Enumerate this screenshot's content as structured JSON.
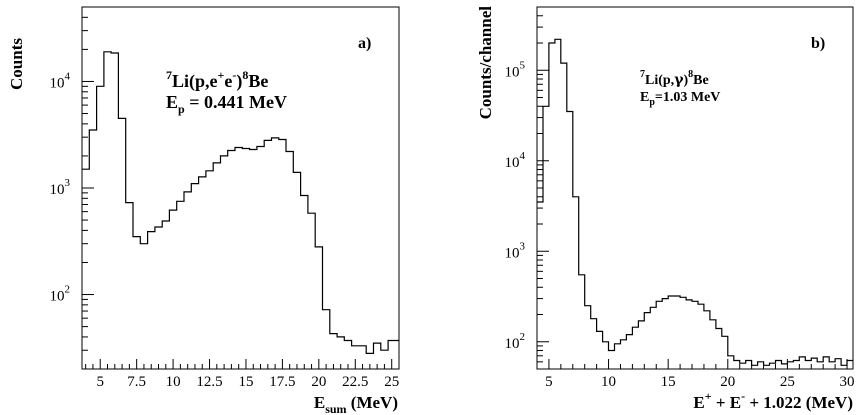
{
  "chart_data": [
    {
      "type": "histogram",
      "panel_label": "a)",
      "ylabel": "Counts",
      "xlabel": {
        "main": "E",
        "sub": "sum",
        "rest": " (MeV)"
      },
      "annotation": {
        "line1": {
          "pre_sup": "7",
          "a": "Li(p,e",
          "sup1": "+",
          "b": "e",
          "sup2": "-",
          "c": ")",
          "sup3": "8",
          "d": "Be"
        },
        "line2": {
          "main": "E",
          "sub": "p",
          "rest": " = 0.441 MeV"
        }
      },
      "y_scale": "log",
      "xlim": [
        3.75,
        25.5
      ],
      "ylim": [
        20,
        50000
      ],
      "x_ticks": [
        "5",
        "7.5",
        "10",
        "12.5",
        "15",
        "17.5",
        "20",
        "22.5",
        "25"
      ],
      "x_tick_values": [
        5,
        7.5,
        10,
        12.5,
        15,
        17.5,
        20,
        22.5,
        25
      ],
      "y_ticks": [
        {
          "value": 100,
          "base": "10",
          "exp": "2"
        },
        {
          "value": 1000,
          "base": "10",
          "exp": "3"
        },
        {
          "value": 10000,
          "base": "10",
          "exp": "4"
        }
      ],
      "bin_edges": [
        3.75,
        4.25,
        4.75,
        5.25,
        5.75,
        6.25,
        6.75,
        7.25,
        7.75,
        8.25,
        8.75,
        9.25,
        9.75,
        10.25,
        10.75,
        11.25,
        11.75,
        12.25,
        12.75,
        13.25,
        13.75,
        14.25,
        14.75,
        15.25,
        15.75,
        16.25,
        16.75,
        17.25,
        17.75,
        18.25,
        18.75,
        19.25,
        19.75,
        20.25,
        20.75,
        21.25,
        21.75,
        22.25,
        22.75,
        23.25,
        23.75,
        24.25,
        24.75,
        25.25,
        25.5
      ],
      "counts": [
        1500,
        3500,
        9000,
        19000,
        18500,
        4500,
        730,
        350,
        300,
        390,
        430,
        490,
        620,
        750,
        920,
        1100,
        1270,
        1450,
        1720,
        2000,
        2250,
        2400,
        2350,
        2300,
        2450,
        2800,
        2950,
        2850,
        2200,
        1400,
        850,
        580,
        280,
        72,
        43,
        40,
        37,
        33,
        33,
        28,
        35,
        30,
        37,
        37
      ]
    },
    {
      "type": "histogram",
      "panel_label": "b)",
      "ylabel": "Counts/channel",
      "xlabel": {
        "a": "E",
        "sup1": "+",
        "b": " + E",
        "sup2": "-",
        "c": " + 1.022 (MeV)"
      },
      "annotation": {
        "line1": {
          "pre_sup": "7",
          "a": "Li(p,",
          "gamma": "γ",
          "b": ")",
          "sup": "8",
          "c": "Be"
        },
        "line2": {
          "main": "E",
          "sub": "p",
          "rest": "=1.03 MeV"
        }
      },
      "y_scale": "log",
      "xlim": [
        4,
        30.5
      ],
      "ylim": [
        50,
        500000
      ],
      "x_ticks": [
        "5",
        "10",
        "15",
        "20",
        "25",
        "30"
      ],
      "x_tick_values": [
        5,
        10,
        15,
        20,
        25,
        30
      ],
      "y_ticks": [
        {
          "value": 100,
          "base": "10",
          "exp": "2"
        },
        {
          "value": 1000,
          "base": "10",
          "exp": "3"
        },
        {
          "value": 10000,
          "base": "10",
          "exp": "4"
        },
        {
          "value": 100000,
          "base": "10",
          "exp": "5"
        }
      ],
      "bin_edges": [
        4,
        4.5,
        5,
        5.5,
        6,
        6.5,
        7,
        7.5,
        8,
        8.5,
        9,
        9.5,
        10,
        10.5,
        11,
        11.5,
        12,
        12.5,
        13,
        13.5,
        14,
        14.5,
        15,
        15.5,
        16,
        16.5,
        17,
        17.5,
        18,
        18.5,
        19,
        19.5,
        20,
        20.5,
        21,
        21.5,
        22,
        22.5,
        23,
        23.5,
        24,
        24.5,
        25,
        25.5,
        26,
        26.5,
        27,
        27.5,
        28,
        28.5,
        29,
        29.5,
        30,
        30.5
      ],
      "counts": [
        3500,
        40000,
        200000,
        220000,
        120000,
        35000,
        4000,
        550,
        250,
        180,
        130,
        100,
        80,
        95,
        105,
        120,
        145,
        170,
        210,
        240,
        280,
        300,
        320,
        320,
        310,
        290,
        280,
        260,
        220,
        175,
        140,
        115,
        70,
        62,
        58,
        62,
        55,
        60,
        55,
        58,
        62,
        57,
        60,
        62,
        68,
        62,
        66,
        60,
        68,
        60,
        65,
        55,
        62
      ]
    }
  ]
}
